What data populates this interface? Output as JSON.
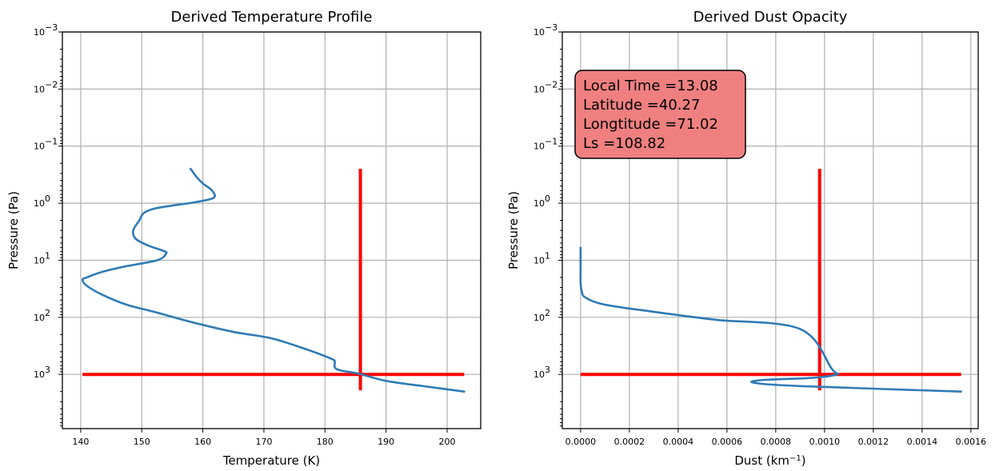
{
  "chart_data": [
    {
      "type": "line",
      "title": "Derived Temperature Profile",
      "xlabel": "Temperature (K)",
      "ylabel": "Pressure (Pa)",
      "xlim": [
        137,
        205.5
      ],
      "ylim_log10": [
        3.95,
        -3
      ],
      "y_inverted": true,
      "y_scale": "log",
      "grid": true,
      "x_ticks": [
        "140",
        "150",
        "160",
        "170",
        "180",
        "190",
        "200"
      ],
      "x_tick_values": [
        140,
        150,
        160,
        170,
        180,
        190,
        200
      ],
      "y_tick_exponents": [
        -3,
        -2,
        -1,
        0,
        1,
        2,
        3
      ],
      "y_tick_mantissa": "10",
      "series": [
        {
          "color": "#2f7bb5",
          "points": [
            [
              158.0,
              0.25
            ],
            [
              159.0,
              0.35
            ],
            [
              160.0,
              0.45
            ],
            [
              161.5,
              0.6
            ],
            [
              161.8,
              0.8
            ],
            [
              159.0,
              0.95
            ],
            [
              155.0,
              1.1
            ],
            [
              152.0,
              1.25
            ],
            [
              150.3,
              1.5
            ],
            [
              149.6,
              2.0
            ],
            [
              148.6,
              3.0
            ],
            [
              149.0,
              4.2
            ],
            [
              151.0,
              5.5
            ],
            [
              153.5,
              6.8
            ],
            [
              154.0,
              7.6
            ],
            [
              152.5,
              10.0
            ],
            [
              147.0,
              13.0
            ],
            [
              143.5,
              16.0
            ],
            [
              141.0,
              20.0
            ],
            [
              140.3,
              22.0
            ],
            [
              141.0,
              28.0
            ],
            [
              143.5,
              40.0
            ],
            [
              147.5,
              60.0
            ],
            [
              152.0,
              80.0
            ],
            [
              158.0,
              120.0
            ],
            [
              165.0,
              180.0
            ],
            [
              171.0,
              230.0
            ],
            [
              176.5,
              350.0
            ],
            [
              181.0,
              530.0
            ],
            [
              181.6,
              600.0
            ],
            [
              181.6,
              750.0
            ],
            [
              182.5,
              850.0
            ],
            [
              185.5,
              970.0
            ],
            [
              190.0,
              1300.0
            ],
            [
              196.0,
              1600.0
            ],
            [
              202.8,
              2000.0
            ]
          ]
        }
      ],
      "reference_lines": [
        {
          "orientation": "vertical",
          "x": 185.8,
          "y_from": 0.25,
          "y_to": 1900,
          "color": "#ff0000"
        },
        {
          "orientation": "horizontal",
          "y": 1000,
          "x_from": 140.3,
          "x_to": 202.8,
          "color": "#ff0000"
        }
      ]
    },
    {
      "type": "line",
      "title": "Derived Dust Opacity",
      "xlabel": "Dust (km",
      "xlabel_sup": "−1",
      "xlabel_suffix": ")",
      "ylabel": "Pressure (Pa)",
      "xlim": [
        -7.5e-05,
        0.00163
      ],
      "ylim_log10": [
        3.95,
        -3
      ],
      "y_inverted": true,
      "y_scale": "log",
      "grid": true,
      "x_ticks": [
        "0.0000",
        "0.0002",
        "0.0004",
        "0.0006",
        "0.0008",
        "0.0010",
        "0.0012",
        "0.0014",
        "0.0016"
      ],
      "x_tick_values": [
        0,
        0.0002,
        0.0004,
        0.0006,
        0.0008,
        0.001,
        0.0012,
        0.0014,
        0.0016
      ],
      "y_tick_exponents": [
        -3,
        -2,
        -1,
        0,
        1,
        2,
        3
      ],
      "y_tick_mantissa": "10",
      "annotation": {
        "lines": [
          "Local Time =13.08",
          "Latitude =40.27",
          "Longtitude =71.02",
          "Ls =108.82"
        ],
        "background": "#f08080"
      },
      "series": [
        {
          "color": "#2f7bb5",
          "points": [
            [
              0.0,
              6.0
            ],
            [
              0.0,
              15.0
            ],
            [
              0.0,
              25.0
            ],
            [
              5e-06,
              35.0
            ],
            [
              2e-05,
              45.0
            ],
            [
              0.0001,
              60.0
            ],
            [
              0.0003,
              80.0
            ],
            [
              0.00055,
              110.0
            ],
            [
              0.0009,
              160.0
            ],
            [
              0.00103,
              800.0
            ],
            [
              0.00105,
              1000.0
            ],
            [
              0.00095,
              1150.0
            ],
            [
              0.00075,
              1250.0
            ],
            [
              0.00071,
              1400.0
            ],
            [
              0.0009,
              1600.0
            ],
            [
              0.00156,
              2000.0
            ]
          ]
        }
      ],
      "reference_lines": [
        {
          "orientation": "vertical",
          "x": 0.00098,
          "y_from": 0.25,
          "y_to": 1900,
          "color": "#ff0000"
        },
        {
          "orientation": "horizontal",
          "y": 1000,
          "x_from": 0.0,
          "x_to": 0.00156,
          "color": "#ff0000"
        }
      ]
    }
  ]
}
